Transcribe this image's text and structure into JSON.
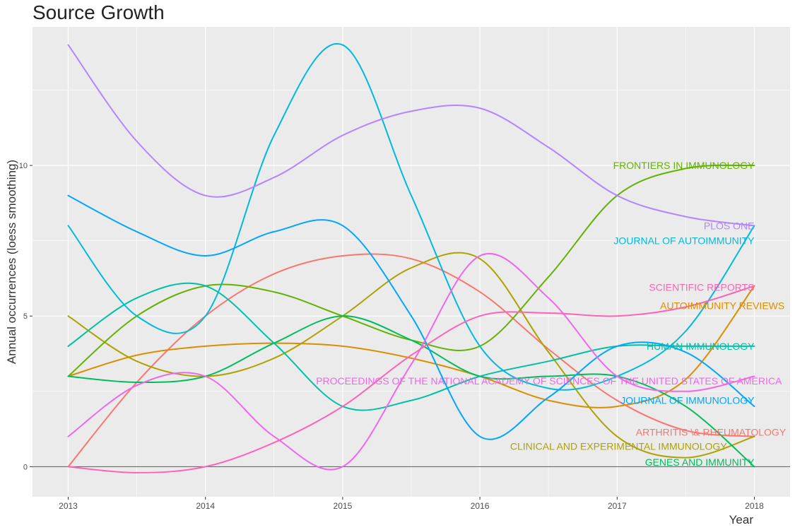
{
  "chart_data": {
    "type": "line",
    "title": "Source Growth",
    "xlabel": "Year",
    "ylabel": "Annual occurrences (loess smoothing)",
    "xlim": [
      2012.74,
      2018.26
    ],
    "ylim": [
      -1,
      14.6
    ],
    "x_ticks": [
      "2013",
      "2014",
      "2015",
      "2016",
      "2017",
      "2018"
    ],
    "y_ticks": [
      "0",
      "5",
      "10"
    ],
    "grid": true,
    "legend": "none (series labelled at right end of each line)",
    "background": "#ebebeb",
    "series": [
      {
        "name": "ARTHRITIS \\& RHEUMATOLOGY",
        "color": "#f8766d",
        "points": [
          [
            2013,
            0
          ],
          [
            2013.5,
            2.8
          ],
          [
            2014,
            5.0
          ],
          [
            2014.5,
            6.4
          ],
          [
            2015,
            7.0
          ],
          [
            2015.5,
            6.9
          ],
          [
            2016,
            5.8
          ],
          [
            2016.5,
            3.9
          ],
          [
            2017,
            2.2
          ],
          [
            2017.5,
            1.2
          ],
          [
            2018,
            1.0
          ]
        ]
      },
      {
        "name": "AUTOIMMUNITY REVIEWS",
        "color": "#db8e00",
        "points": [
          [
            2013,
            3.0
          ],
          [
            2013.5,
            3.7
          ],
          [
            2014,
            4.0
          ],
          [
            2014.5,
            4.1
          ],
          [
            2015,
            4.0
          ],
          [
            2015.5,
            3.6
          ],
          [
            2016,
            3.0
          ],
          [
            2016.5,
            2.2
          ],
          [
            2017,
            2.0
          ],
          [
            2017.5,
            2.9
          ],
          [
            2018,
            6.0
          ]
        ]
      },
      {
        "name": "CLINICAL AND EXPERIMENTAL IMMUNOLOGY",
        "color": "#aea200",
        "points": [
          [
            2013,
            5.0
          ],
          [
            2013.5,
            3.5
          ],
          [
            2014,
            3.0
          ],
          [
            2014.5,
            3.6
          ],
          [
            2015,
            5.0
          ],
          [
            2015.5,
            6.6
          ],
          [
            2016,
            6.9
          ],
          [
            2016.5,
            3.8
          ],
          [
            2017,
            1.0
          ],
          [
            2017.5,
            0.3
          ],
          [
            2018,
            1.0
          ]
        ]
      },
      {
        "name": "FRONTIERS IN IMMUNOLOGY",
        "color": "#64b200",
        "points": [
          [
            2013,
            3.0
          ],
          [
            2013.5,
            5.0
          ],
          [
            2014,
            6.0
          ],
          [
            2014.5,
            5.8
          ],
          [
            2015,
            5.0
          ],
          [
            2015.5,
            4.2
          ],
          [
            2016,
            4.0
          ],
          [
            2016.5,
            6.3
          ],
          [
            2017,
            9.0
          ],
          [
            2017.5,
            9.9
          ],
          [
            2018,
            10.0
          ]
        ]
      },
      {
        "name": "GENES AND IMMUNITY",
        "color": "#00bd5c",
        "points": [
          [
            2013,
            3.0
          ],
          [
            2013.5,
            2.8
          ],
          [
            2014,
            3.0
          ],
          [
            2014.5,
            4.1
          ],
          [
            2015,
            5.0
          ],
          [
            2015.5,
            4.2
          ],
          [
            2016,
            3.0
          ],
          [
            2016.5,
            3.0
          ],
          [
            2017,
            3.0
          ],
          [
            2017.5,
            2.0
          ],
          [
            2018,
            0
          ]
        ]
      },
      {
        "name": "HUMAN IMMUNOLOGY",
        "color": "#00c1a7",
        "points": [
          [
            2013,
            4.0
          ],
          [
            2013.5,
            5.6
          ],
          [
            2014,
            6.0
          ],
          [
            2014.5,
            4.1
          ],
          [
            2015,
            2.0
          ],
          [
            2015.5,
            2.2
          ],
          [
            2016,
            3.0
          ],
          [
            2016.5,
            3.5
          ],
          [
            2017,
            4.0
          ],
          [
            2017.5,
            4.0
          ],
          [
            2018,
            4.0
          ]
        ]
      },
      {
        "name": "JOURNAL OF AUTOIMMUNITY",
        "color": "#00bade",
        "points": [
          [
            2013,
            8.0
          ],
          [
            2013.5,
            5.0
          ],
          [
            2014,
            5.0
          ],
          [
            2014.5,
            11.0
          ],
          [
            2015,
            14.0
          ],
          [
            2015.5,
            9.0
          ],
          [
            2016,
            4.0
          ],
          [
            2016.5,
            2.6
          ],
          [
            2017,
            3.0
          ],
          [
            2017.5,
            4.5
          ],
          [
            2018,
            8.0
          ]
        ]
      },
      {
        "name": "JOURNAL OF IMMUNOLOGY",
        "color": "#00a6ff",
        "points": [
          [
            2013,
            9.0
          ],
          [
            2013.5,
            7.8
          ],
          [
            2014,
            7.0
          ],
          [
            2014.5,
            7.8
          ],
          [
            2015,
            8.0
          ],
          [
            2015.5,
            5.0
          ],
          [
            2016,
            1.0
          ],
          [
            2016.5,
            2.3
          ],
          [
            2017,
            4.0
          ],
          [
            2017.5,
            3.8
          ],
          [
            2018,
            2.0
          ]
        ]
      },
      {
        "name": "PLOS ONE",
        "color": "#b385ff",
        "points": [
          [
            2013,
            14.0
          ],
          [
            2013.5,
            10.8
          ],
          [
            2014,
            9.0
          ],
          [
            2014.5,
            9.6
          ],
          [
            2015,
            11.0
          ],
          [
            2015.5,
            11.8
          ],
          [
            2016,
            11.9
          ],
          [
            2016.5,
            10.6
          ],
          [
            2017,
            9.0
          ],
          [
            2017.5,
            8.3
          ],
          [
            2018,
            8.0
          ]
        ]
      },
      {
        "name": "PROCEEDINGS OF THE NATIONAL ACADEMY OF SCIENCES OF THE UNITED STATES OF AMERICA",
        "color": "#ef67eb",
        "points": [
          [
            2013,
            1.0
          ],
          [
            2013.5,
            2.7
          ],
          [
            2014,
            3.0
          ],
          [
            2014.5,
            1.0
          ],
          [
            2015,
            0
          ],
          [
            2015.5,
            3.4
          ],
          [
            2016,
            7.0
          ],
          [
            2016.5,
            5.6
          ],
          [
            2017,
            3.0
          ],
          [
            2017.5,
            2.5
          ],
          [
            2018,
            3.0
          ]
        ]
      },
      {
        "name": "SCIENTIFIC REPORTS",
        "color": "#ff63b6",
        "points": [
          [
            2013,
            0
          ],
          [
            2013.5,
            -0.2
          ],
          [
            2014,
            0
          ],
          [
            2014.5,
            0.8
          ],
          [
            2015,
            2.0
          ],
          [
            2015.5,
            3.7
          ],
          [
            2016,
            5.0
          ],
          [
            2016.5,
            5.1
          ],
          [
            2017,
            5.0
          ],
          [
            2017.5,
            5.3
          ],
          [
            2018,
            6.0
          ]
        ]
      }
    ],
    "labels": [
      {
        "text": "FRONTIERS IN IMMUNOLOGY",
        "color": "#64b200",
        "x": 2018,
        "y": 10.0
      },
      {
        "text": "PLOS ONE",
        "color": "#b385ff",
        "x": 2018,
        "y": 8.0
      },
      {
        "text": "JOURNAL OF AUTOIMMUNITY",
        "color": "#00bade",
        "x": 2018,
        "y": 7.5
      },
      {
        "text": "SCIENTIFIC REPORTS",
        "color": "#ff63b6",
        "x": 2018,
        "y": 5.95
      },
      {
        "text": "AUTOIMMUNITY REVIEWS",
        "color": "#db8e00",
        "x": 2018.22,
        "y": 5.35
      },
      {
        "text": "HUMAN IMMUNOLOGY",
        "color": "#00c1a7",
        "x": 2018,
        "y": 4.0
      },
      {
        "text": "PROCEEDINGS OF THE NATIONAL ACADEMY OF SCIENCES OF THE UNITED STATES OF   AMERICA",
        "color": "#ef67eb",
        "x": 2018.2,
        "y": 2.85
      },
      {
        "text": "JOURNAL OF IMMUNOLOGY",
        "color": "#00a6ff",
        "x": 2018,
        "y": 2.2
      },
      {
        "text": "ARTHRITIS \\& RHEUMATOLOGY",
        "color": "#f8766d",
        "x": 2018.23,
        "y": 1.15
      },
      {
        "text": "CLINICAL AND EXPERIMENTAL IMMUNOLOGY",
        "color": "#aea200",
        "x": 2017.8,
        "y": 0.68
      },
      {
        "text": "GENES AND IMMUNITY",
        "color": "#00bd5c",
        "x": 2018,
        "y": 0.15
      }
    ]
  }
}
